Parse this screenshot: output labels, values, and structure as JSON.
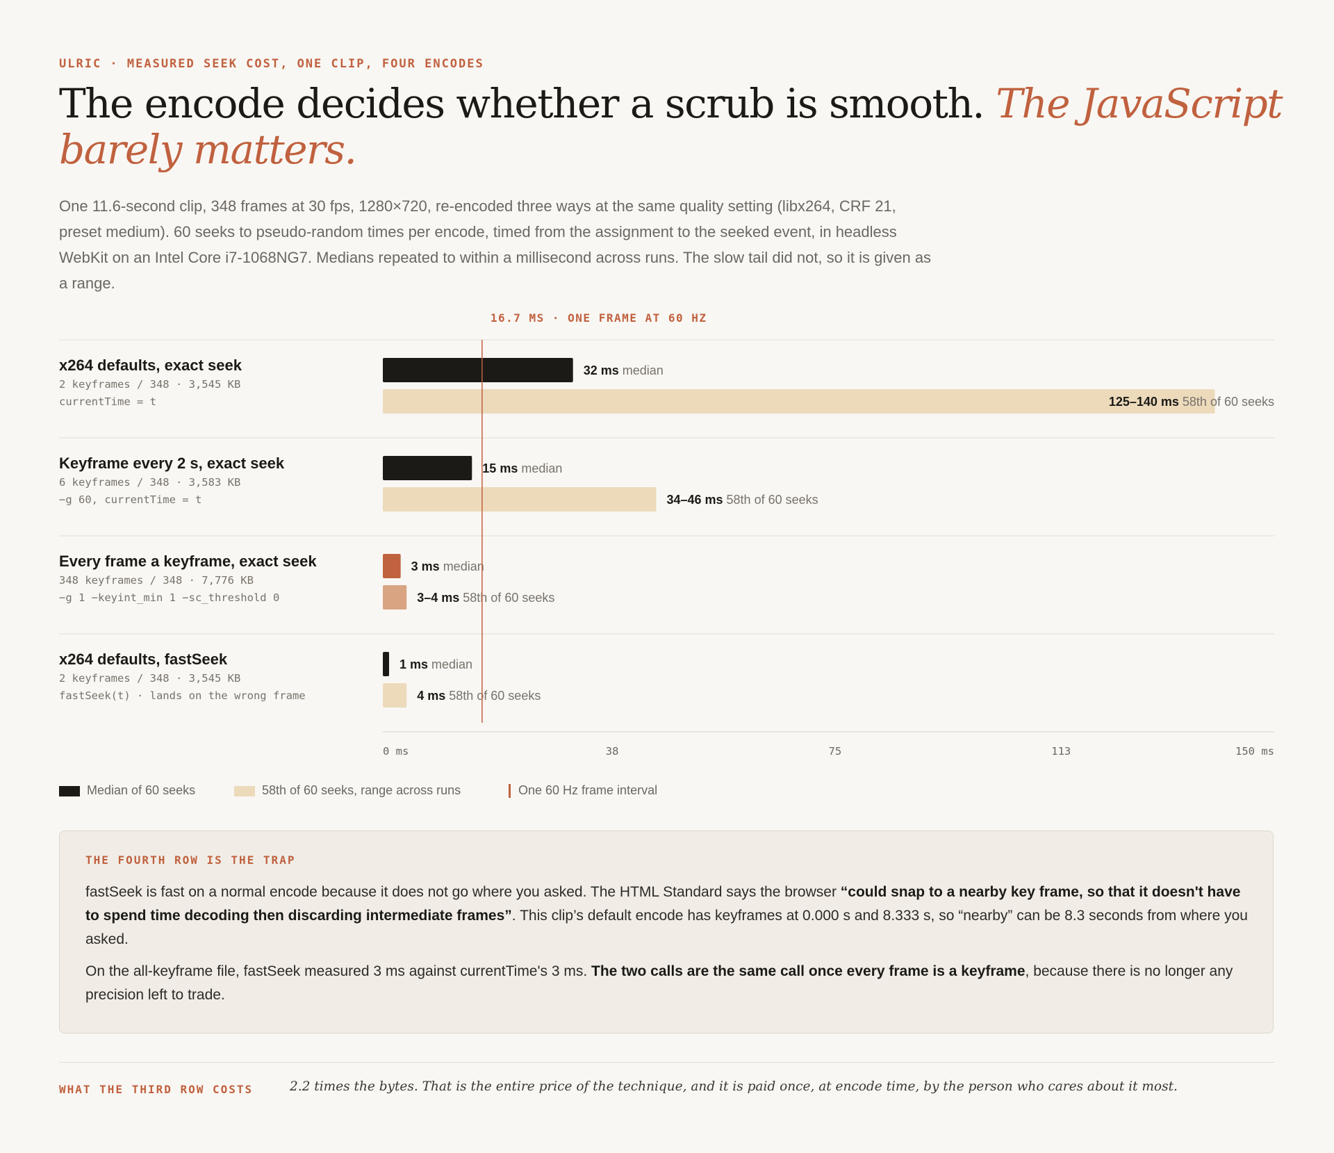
{
  "eyebrow": "ULRIC · MEASURED SEEK COST, ONE CLIP, FOUR ENCODES",
  "headline": {
    "lead": "The encode decides whether a scrub is smooth.",
    "accent": "The JavaScript barely matters."
  },
  "intro": "One 11.6-second clip, 348 frames at 30 fps, 1280×720, re-encoded three ways at the same quality setting (libx264, CRF 21, preset medium). 60 seeks to pseudo-random times per encode, timed from the assignment to the seeked event, in headless WebKit on an Intel Core i7-1068NG7. Medians repeated to within a millisecond across runs. The slow tail did not, so it is given as a range.",
  "chart_data": {
    "type": "bar",
    "orientation": "horizontal",
    "xlim": [
      0,
      150
    ],
    "x_ticks": [
      "0 ms",
      "38",
      "75",
      "113",
      "150 ms"
    ],
    "x_tick_values": [
      0,
      37.5,
      75,
      112.5,
      150
    ],
    "reference_line": {
      "value": 16.7,
      "label": "16.7 MS · ONE FRAME AT 60 HZ"
    },
    "legend_placement": "bottom-left",
    "series": [
      {
        "name": "Median of 60 seeks"
      },
      {
        "name": "58th of 60 seeks, range across runs"
      }
    ],
    "rows": [
      {
        "title": "x264 defaults, exact seek",
        "meta1": "2 keyframes / 348 · 3,545 KB",
        "meta2": "currentTime = t",
        "median": 32,
        "median_value": "32 ms",
        "median_suffix": "median",
        "tail": [
          125,
          140
        ],
        "tail_value": "125–140 ms",
        "tail_suffix": "58th of 60 seeks",
        "highlight": false
      },
      {
        "title": "Keyframe every 2 s, exact seek",
        "meta1": "6 keyframes / 348 · 3,583 KB",
        "meta2": "−g 60, currentTime = t",
        "median": 15,
        "median_value": "15 ms",
        "median_suffix": "median",
        "tail": [
          34,
          46
        ],
        "tail_value": "34–46 ms",
        "tail_suffix": "58th of 60 seeks",
        "highlight": false
      },
      {
        "title": "Every frame a keyframe, exact seek",
        "meta1": "348 keyframes / 348 · 7,776 KB",
        "meta2": "−g 1 −keyint_min 1 −sc_threshold 0",
        "median": 3,
        "median_value": "3 ms",
        "median_suffix": "median",
        "tail": [
          3,
          4
        ],
        "tail_value": "3–4 ms",
        "tail_suffix": "58th of 60 seeks",
        "highlight": true
      },
      {
        "title": "x264 defaults, fastSeek",
        "meta1": "2 keyframes / 348 · 3,545 KB",
        "meta2": "fastSeek(t) · lands on the wrong frame",
        "median": 1,
        "median_value": "1 ms",
        "median_suffix": "median",
        "tail": [
          4,
          4
        ],
        "tail_value": "4 ms",
        "tail_suffix": "58th of 60 seeks",
        "highlight": false
      }
    ]
  },
  "legend": {
    "median": "Median of 60 seeks",
    "tail": "58th of 60 seeks, range across runs",
    "frame": "One 60 Hz frame interval"
  },
  "colors": {
    "accent": "#c0613f",
    "median_bar": "#1b1a17",
    "tail_bar": "#ecdabb",
    "highlight_median": "#c0613f",
    "highlight_tail": "#d9a482"
  },
  "callout": {
    "heading": "THE FOURTH ROW IS THE TRAP",
    "p1_a": "fastSeek is fast on a normal encode because it does not go where you asked. The HTML Standard says the browser ",
    "p1_b": "“could snap to a nearby key frame, so that it doesn't have to spend time decoding then discarding intermediate frames”",
    "p1_c": ". This clip’s default encode has keyframes at 0.000 s and 8.333 s, so “nearby” can be 8.3 seconds from where you asked.",
    "p2_a": "On the all-keyframe file, fastSeek measured 3 ms against currentTime's 3 ms. ",
    "p2_b": "The two calls are the same call once every frame is a keyframe",
    "p2_c": ", because there is no longer any precision left to trade."
  },
  "footer": {
    "label": "WHAT THE THIRD ROW COSTS",
    "text": "2.2 times the bytes. That is the entire price of the technique, and it is paid once, at encode time, by the person who cares about it most."
  }
}
